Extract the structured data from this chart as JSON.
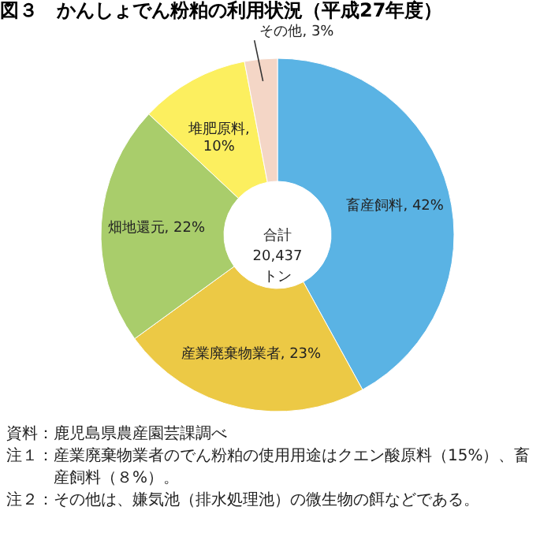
{
  "chart_data": {
    "type": "donut",
    "title": "図３　かんしょでん粉粕の利用状況（平成27年度）",
    "categories": [
      "畜産飼料",
      "産業廃棄物業者",
      "畑地還元",
      "堆肥原料",
      "その他"
    ],
    "values": [
      42,
      23,
      22,
      10,
      3
    ],
    "colors": [
      "#5ab3e4",
      "#ecc945",
      "#a9cd6b",
      "#fcef5f",
      "#f4d6c6"
    ],
    "value_labels": [
      ", 42%",
      ", 23%",
      ", 22%",
      ", 10%",
      ", 3%"
    ],
    "legend": false,
    "annotations": [
      "合計\n20,437\nトン",
      "資料：鹿児島県農産園芸課調べ",
      "注１：産業廃棄物業者のでん粉粕の使用用途はクエン酸原料（15%）、畜産飼料（８%）。",
      "注２：その他は、嫌気池（排水処理池）の微生物の餌などである。"
    ]
  }
}
